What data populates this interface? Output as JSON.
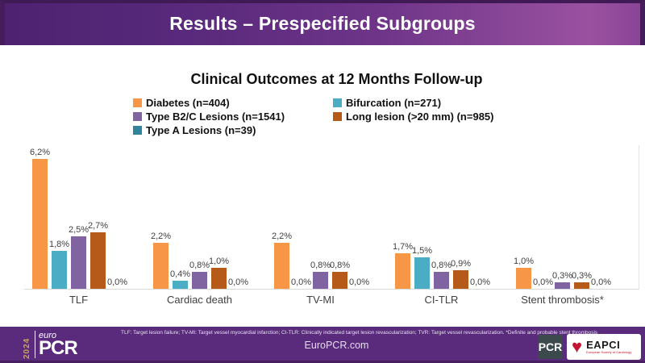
{
  "slide": {
    "header": {
      "title": "Results – Prespecified Subgroups"
    },
    "footer": {
      "footnote": "TLF: Target lesion failure; TV-MI: Target vessel myocardial infarction; CI-TLR: Clinically indicated target lesion revascularization; TVR: Target vessel revascularization. *Definite and probable stent thrombosis",
      "website": "EuroPCR.com",
      "europcr_logo": {
        "year": "2024",
        "euro": "euro",
        "pcr": "PCR"
      },
      "pcr_badge": "PCR",
      "eapci": {
        "name": "EAPCI",
        "subtext": "European Society of Cardiology"
      }
    },
    "theme": {
      "header_purple_dark": "#3F1A55",
      "header_purple_light": "#9A51A0",
      "footer_purple": "#5A2B7D",
      "logo_gold": "#C9A254",
      "eapci_red": "#C3152F"
    }
  },
  "chart_data": {
    "type": "bar",
    "title": "Clinical Outcomes at 12 Months Follow-up",
    "categories": [
      "TLF",
      "Cardiac death",
      "TV-MI",
      "CI-TLR",
      "Stent thrombosis*"
    ],
    "series": [
      {
        "name": "Diabetes (n=404)",
        "color": "#F79646",
        "values": [
          6.2,
          2.2,
          2.2,
          1.7,
          1.0
        ]
      },
      {
        "name": "Bifurcation (n=271)",
        "color": "#4BACC6",
        "values": [
          1.8,
          0.4,
          0.0,
          1.5,
          0.0
        ]
      },
      {
        "name": "Type B2/C Lesions (n=1541)",
        "color": "#8064A2",
        "values": [
          2.5,
          0.8,
          0.8,
          0.8,
          0.3
        ]
      },
      {
        "name": "Long lesion (>20 mm) (n=985)",
        "color": "#B55A18",
        "values": [
          2.7,
          1.0,
          0.8,
          0.9,
          0.3
        ]
      },
      {
        "name": "Type A Lesions (n=39)",
        "color": "#31849B",
        "values": [
          0.0,
          0.0,
          0.0,
          0.0,
          0.0
        ]
      }
    ],
    "value_suffix": "%",
    "decimal_separator": ",",
    "ylim": [
      0,
      7
    ],
    "gridlines": false,
    "legend_position": "top",
    "value_labels_shown": true
  }
}
